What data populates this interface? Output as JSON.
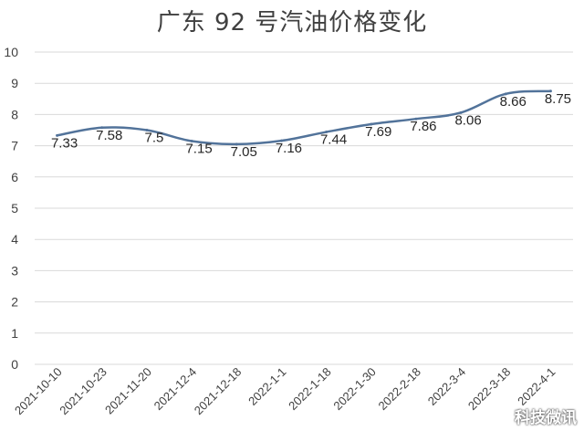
{
  "chart_data": {
    "type": "line",
    "title": "广东 92 号汽油价格变化",
    "categories": [
      "2021-10-10",
      "2021-10-23",
      "2021-11-20",
      "2021-12-4",
      "2021-12-18",
      "2022-1-1",
      "2022-1-18",
      "2022-1-30",
      "2022-2-18",
      "2022-3-4",
      "2022-3-18",
      "2022-4-1"
    ],
    "series": [
      {
        "values": [
          7.33,
          7.58,
          7.5,
          7.15,
          7.05,
          7.16,
          7.44,
          7.69,
          7.86,
          8.06,
          8.66,
          8.75
        ]
      }
    ],
    "value_labels": [
      "7.33",
      "7.58",
      "7.5",
      "7.15",
      "7.05",
      "7.16",
      "7.44",
      "7.69",
      "7.86",
      "8.06",
      "8.66",
      "8.75"
    ],
    "ylim": [
      0,
      10
    ],
    "yticks": [
      "0",
      "1",
      "2",
      "3",
      "4",
      "5",
      "6",
      "7",
      "8",
      "9",
      "10"
    ],
    "grid": true,
    "line_color": "#52739a"
  },
  "watermark": "科技微讯"
}
